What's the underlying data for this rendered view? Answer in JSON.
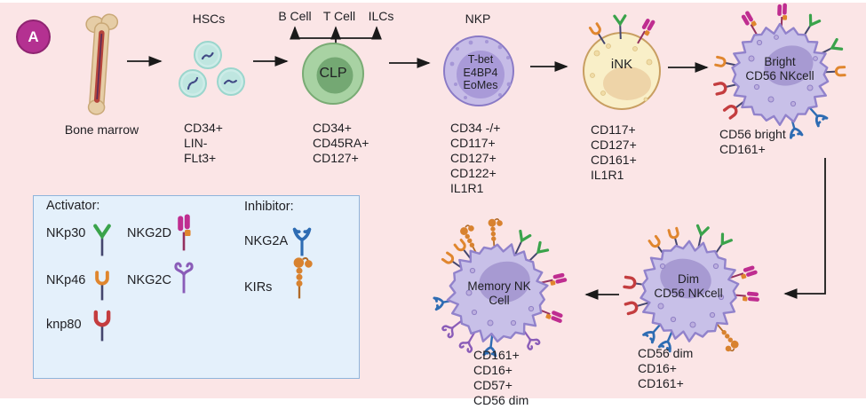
{
  "panel_label": "A",
  "stages": {
    "bone_marrow": {
      "label": "Bone marrow"
    },
    "hsc": {
      "label": "HSCs",
      "markers": [
        "CD34+",
        "LIN-",
        "FLt3+"
      ]
    },
    "clp": {
      "label": "CLP",
      "branches": [
        "B Cell",
        "T Cell",
        "ILCs"
      ],
      "markers": [
        "CD34+",
        "CD45RA+",
        "CD127+"
      ]
    },
    "nkp": {
      "label": "NKP",
      "factors": [
        "T-bet",
        "E4BP4",
        "EoMes"
      ],
      "markers": [
        "CD34 -/+",
        "CD117+",
        "CD127+",
        "CD122+",
        "IL1R1"
      ]
    },
    "ink": {
      "label": "iNK",
      "markers": [
        "CD117+",
        "CD127+",
        "CD161+",
        "IL1R1"
      ]
    },
    "bright": {
      "label_line1": "Bright",
      "label_line2": "CD56 NKcell",
      "markers": [
        "CD56 bright",
        "CD161+"
      ]
    },
    "dim": {
      "label_line1": "Dim",
      "label_line2": "CD56 NKcell",
      "markers": [
        "CD56 dim",
        "CD16+",
        "CD161+"
      ]
    },
    "memory": {
      "label_line1": "Memory NK",
      "label_line2": "Cell",
      "markers": [
        "CD161+",
        "CD16+",
        "CD57+",
        "CD56 dim"
      ]
    }
  },
  "legend": {
    "activator_title": "Activator:",
    "inhibitor_title": "Inhibitor:",
    "items": [
      {
        "name": "NKp30",
        "icon": "green-y-receptor-icon"
      },
      {
        "name": "NKG2D",
        "icon": "magenta-block-receptor-icon"
      },
      {
        "name": "NKp46",
        "icon": "orange-hook-receptor-icon"
      },
      {
        "name": "NKG2C",
        "icon": "purple-curl-receptor-icon"
      },
      {
        "name": "knp80",
        "icon": "red-hook-receptor-icon"
      },
      {
        "name": "NKG2A",
        "icon": "blue-fork-receptor-icon"
      },
      {
        "name": "KIRs",
        "icon": "orange-bead-receptor-icon"
      }
    ]
  },
  "colors": {
    "background": "#fbe5e6",
    "panel_badge": "#b43191",
    "legend_fill": "#e4f0fb",
    "legend_border": "#8fb4da",
    "activator_green": "#3aa34b",
    "activator_orange": "#e0862e",
    "activator_magenta": "#bf2d90",
    "activator_purple": "#8a5cb8",
    "activator_red": "#c43d3f",
    "inhibitor_blue": "#2e6cb3",
    "inhibitor_orange": "#d8822f",
    "hsc_cell": "#cdece8",
    "clp_cell": "#a8d2a3",
    "nkp_cell": "#c6bce7",
    "ink_cell": "#f9efc8",
    "nk_cell_body": "#c8c0e8",
    "arrow": "#1a1a1a"
  }
}
